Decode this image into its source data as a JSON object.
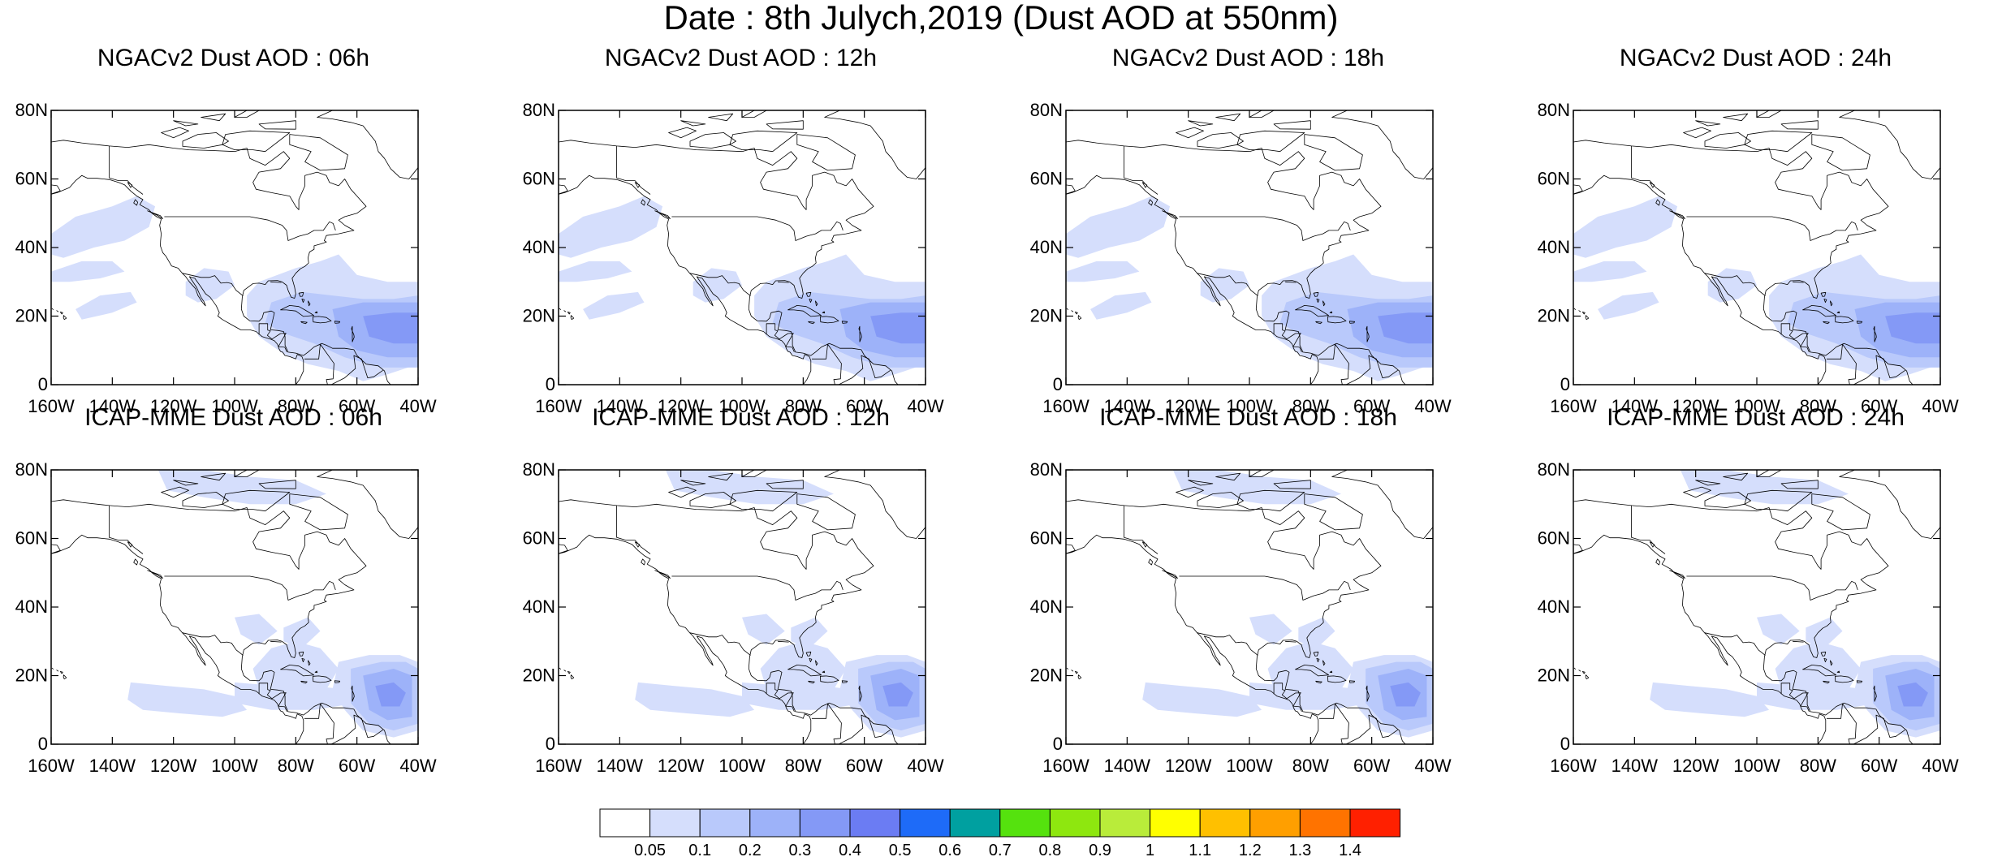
{
  "title": "Date : 8th Julych,2019 (Dust AOD at 550nm)",
  "lat_ticks": [
    "80N",
    "60N",
    "40N",
    "20N",
    "0"
  ],
  "lon_ticks": [
    "160W",
    "140W",
    "120W",
    "100W",
    "80W",
    "60W",
    "40W"
  ],
  "panels": [
    {
      "title": "NGACv2 Dust AOD : 06h",
      "model": "NGACv2",
      "lead": "06h"
    },
    {
      "title": "NGACv2 Dust AOD : 12h",
      "model": "NGACv2",
      "lead": "12h"
    },
    {
      "title": "NGACv2 Dust AOD : 18h",
      "model": "NGACv2",
      "lead": "18h"
    },
    {
      "title": "NGACv2 Dust AOD : 24h",
      "model": "NGACv2",
      "lead": "24h"
    },
    {
      "title": "ICAP-MME Dust AOD : 06h",
      "model": "ICAP-MME",
      "lead": "06h"
    },
    {
      "title": "ICAP-MME Dust AOD : 12h",
      "model": "ICAP-MME",
      "lead": "12h"
    },
    {
      "title": "ICAP-MME Dust AOD : 18h",
      "model": "ICAP-MME",
      "lead": "18h"
    },
    {
      "title": "ICAP-MME Dust AOD : 24h",
      "model": "ICAP-MME",
      "lead": "24h"
    }
  ],
  "colorbar": {
    "labels": [
      "0.05",
      "0.1",
      "0.2",
      "0.3",
      "0.4",
      "0.5",
      "0.6",
      "0.7",
      "0.8",
      "0.9",
      "1",
      "1.1",
      "1.2",
      "1.3",
      "1.4"
    ],
    "colors": [
      "#ffffff",
      "#d5defc",
      "#b9c9fb",
      "#9db2f9",
      "#8499f6",
      "#6b7cf3",
      "#1e6bf8",
      "#00a0a0",
      "#55e20e",
      "#8ee70f",
      "#b9ec3a",
      "#ffff00",
      "#ffc000",
      "#ff9f00",
      "#ff7300",
      "#ff2000"
    ]
  },
  "map": {
    "lon_range": [
      -160,
      -40
    ],
    "lat_range": [
      0,
      80
    ]
  }
}
